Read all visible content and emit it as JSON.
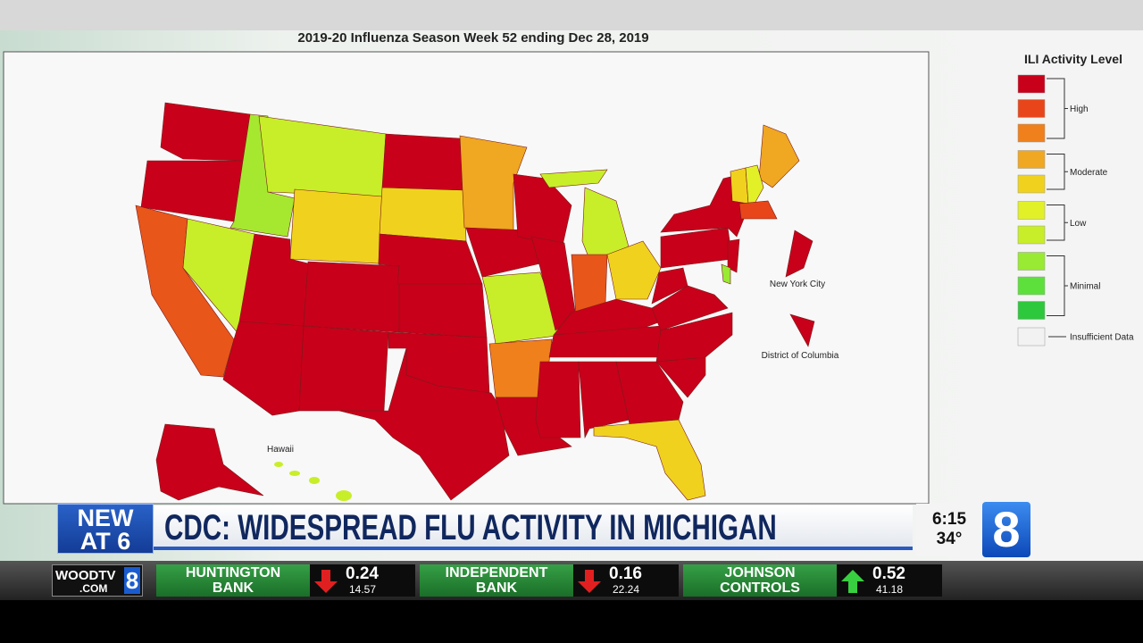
{
  "map": {
    "title": "2019-20 Influenza Season Week 52 ending Dec 28, 2019",
    "labels": {
      "nyc": "New York City",
      "dc": "District of Columbia",
      "hawaii": "Hawaii"
    }
  },
  "legend": {
    "title": "ILI Activity Level",
    "groups": [
      {
        "label": "High",
        "colors": [
          "#c8001a",
          "#e8461a",
          "#f0801c"
        ]
      },
      {
        "label": "Moderate",
        "colors": [
          "#f0a722",
          "#f0d21e"
        ]
      },
      {
        "label": "Low",
        "colors": [
          "#e2f028",
          "#c8ee2a"
        ]
      },
      {
        "label": "Minimal",
        "colors": [
          "#98ea32",
          "#5ee03c",
          "#2ec83c"
        ]
      },
      {
        "label": "Insufficient Data",
        "colors": [
          "#f2f2f2"
        ]
      }
    ]
  },
  "lower_third": {
    "badge": [
      "NEW",
      "AT 6"
    ],
    "headline": "CDC: WIDESPREAD FLU ACTIVITY IN MICHIGAN",
    "time": "6:15",
    "temperature": "34°",
    "channel": "8"
  },
  "ticker": {
    "logo": {
      "name": "WOODTV",
      "domain": ".COM",
      "channel": "8"
    },
    "stocks": [
      {
        "name": [
          "HUNTINGTON",
          "BANK"
        ],
        "direction": "down",
        "change": 0.24,
        "price": 14.57
      },
      {
        "name": [
          "INDEPENDENT",
          "BANK"
        ],
        "direction": "down",
        "change": 0.16,
        "price": 22.24
      },
      {
        "name": [
          "JOHNSON",
          "CONTROLS"
        ],
        "direction": "up",
        "change": 0.52,
        "price": 41.18
      }
    ]
  }
}
